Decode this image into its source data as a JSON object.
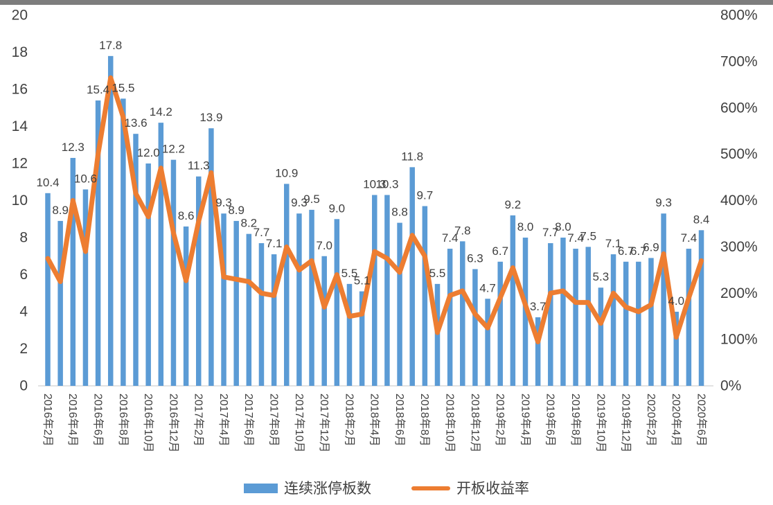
{
  "page": {
    "background": "#ffffff",
    "topbar_color": "#7d7d7d"
  },
  "chart_data": {
    "type": "bar",
    "subtype": "bar+line combo, dual axis",
    "grid": false,
    "legend_position": "bottom-center",
    "categories": [
      "2016-02",
      "2016-03",
      "2016-04",
      "2016-05",
      "2016-06",
      "2016-07",
      "2016-08",
      "2016-09",
      "2016-10",
      "2016-11",
      "2016-12",
      "2017-01",
      "2017-02",
      "2017-03",
      "2017-04",
      "2017-05",
      "2017-06",
      "2017-07",
      "2017-08",
      "2017-09",
      "2017-10",
      "2017-11",
      "2017-12",
      "2018-01",
      "2018-02",
      "2018-03",
      "2018-04",
      "2018-05",
      "2018-06",
      "2018-07",
      "2018-08",
      "2018-09",
      "2018-10",
      "2018-11",
      "2018-12",
      "2019-01",
      "2019-02",
      "2019-03",
      "2019-04",
      "2019-05",
      "2019-06",
      "2019-07",
      "2019-08",
      "2019-09",
      "2019-10",
      "2019-11",
      "2019-12",
      "2020-01",
      "2020-02",
      "2020-03",
      "2020-04",
      "2020-05",
      "2020-06"
    ],
    "x_tick_labels": [
      "2016年2月",
      "2016年4月",
      "2016年6月",
      "2016年8月",
      "2016年10月",
      "2016年12月",
      "2017年2月",
      "2017年4月",
      "2017年6月",
      "2017年8月",
      "2017年10月",
      "2017年12月",
      "2018年2月",
      "2018年4月",
      "2018年6月",
      "2018年8月",
      "2018年10月",
      "2018年12月",
      "2019年2月",
      "2019年4月",
      "2019年6月",
      "2019年8月",
      "2019年10月",
      "2019年12月",
      "2020年2月",
      "2020年4月",
      "2020年6月"
    ],
    "x_tick_every": 2,
    "series": [
      {
        "name": "连续涨停板数",
        "type": "bar",
        "axis": "left",
        "color": "#5B9BD5",
        "data_labels_shown": true,
        "values": [
          10.4,
          8.9,
          12.3,
          10.6,
          15.4,
          17.8,
          15.5,
          13.6,
          12.0,
          14.2,
          12.2,
          8.6,
          11.3,
          13.9,
          9.3,
          8.9,
          8.2,
          7.7,
          7.1,
          10.9,
          9.3,
          9.5,
          7.0,
          9.0,
          5.5,
          5.1,
          10.3,
          10.3,
          8.8,
          11.8,
          9.7,
          5.5,
          7.4,
          7.8,
          6.3,
          4.7,
          6.7,
          9.2,
          8.0,
          3.7,
          7.7,
          8.0,
          7.4,
          7.5,
          5.3,
          7.1,
          6.7,
          6.7,
          6.9,
          9.3,
          4.0,
          7.4,
          8.4
        ]
      },
      {
        "name": "开板收益率",
        "type": "line",
        "axis": "right",
        "color": "#ED7D31",
        "data_labels_shown": false,
        "values_pct": [
          275,
          225,
          400,
          290,
          500,
          665,
          580,
          415,
          365,
          470,
          330,
          227,
          355,
          460,
          235,
          230,
          225,
          200,
          195,
          300,
          250,
          270,
          170,
          240,
          150,
          155,
          290,
          275,
          245,
          325,
          280,
          115,
          195,
          205,
          155,
          125,
          190,
          255,
          175,
          95,
          200,
          205,
          180,
          180,
          135,
          200,
          170,
          160,
          175,
          285,
          105,
          190,
          270
        ]
      }
    ],
    "y_axis_left": {
      "min": 0,
      "max": 20,
      "ticks": [
        "20",
        "18",
        "16",
        "14",
        "12",
        "10",
        "8",
        "6",
        "4",
        "2",
        "0"
      ]
    },
    "y_axis_right": {
      "min_label": "0%",
      "max_label": "800%",
      "ticks": [
        "800%",
        "700%",
        "600%",
        "500%",
        "400%",
        "300%",
        "200%",
        "100%",
        "0%"
      ]
    },
    "text_color": "#404040",
    "axis_line_color": "#d9d9d9"
  }
}
